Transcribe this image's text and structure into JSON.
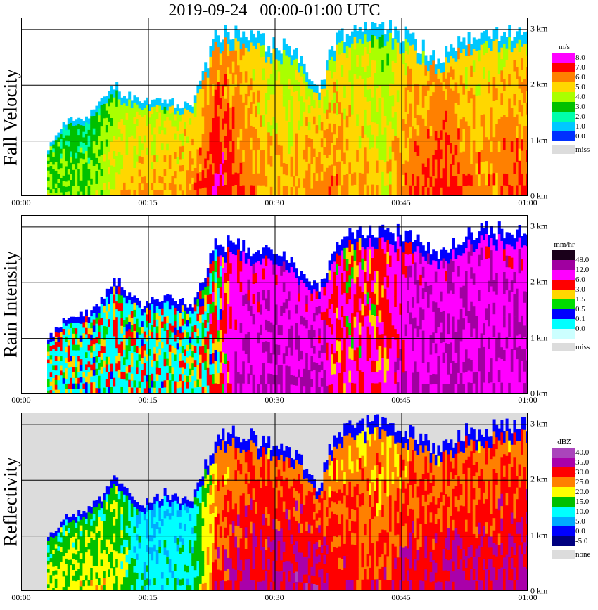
{
  "title": "2019-09-24   00:00-01:00 UTC",
  "x_ticks": [
    "00:00",
    "00:15",
    "00:30",
    "00:45",
    "01:00"
  ],
  "y_ticks": [
    "0 km",
    "1 km",
    "2 km",
    "3 km"
  ],
  "colors": {
    "missing": "#dcdcdc",
    "grid": "#000000"
  },
  "panels": [
    {
      "id": "fall-velocity",
      "ylabel": "Fall Velocity",
      "colorbar": {
        "unit": "m/s",
        "labels": [
          "8.0",
          "7.0",
          "6.0",
          "5.0",
          "4.0",
          "3.0",
          "2.0",
          "1.0",
          "0.0"
        ],
        "colors": [
          "#ff00ff",
          "#ff0000",
          "#ff8000",
          "#ffd700",
          "#aaff00",
          "#00c000",
          "#00ffaa",
          "#00c8ff",
          "#0030ff"
        ],
        "missing_label": "miss"
      }
    },
    {
      "id": "rain-intensity",
      "ylabel": "Rain Intensity",
      "colorbar": {
        "unit": "mm/hr",
        "labels": [
          "48.0",
          "12.0",
          "6.0",
          "3.0",
          "1.5",
          "0.5",
          "0.1",
          "0.0"
        ],
        "colors": [
          "#1a001a",
          "#a000a0",
          "#ff00ff",
          "#ff0000",
          "#ffd700",
          "#00dd00",
          "#0000ff",
          "#00ffff",
          "#ccffff"
        ],
        "missing_label": "miss"
      }
    },
    {
      "id": "reflectivity",
      "ylabel": "Reflectivity",
      "colorbar": {
        "unit": "dBZ",
        "labels": [
          "40.0",
          "35.0",
          "30.0",
          "25.0",
          "20.0",
          "15.0",
          "10.0",
          "5.0",
          "0.0",
          "-5.0"
        ],
        "colors": [
          "#aa44bb",
          "#aa00aa",
          "#ff0000",
          "#ff8000",
          "#ffff00",
          "#00c000",
          "#00ffff",
          "#00aaff",
          "#0000ff",
          "#000080"
        ],
        "missing_label": "none"
      }
    }
  ],
  "chart_data": [
    {
      "type": "heatmap",
      "ylabel": "Fall Velocity",
      "x_range": [
        "00:00",
        "01:00"
      ],
      "ylim_km": [
        0,
        3.2
      ],
      "unit": "m/s",
      "levels": [
        0,
        1,
        2,
        3,
        4,
        5,
        6,
        7,
        8
      ],
      "profiles": [
        {
          "t": "00:03",
          "top_km": 0.9,
          "v": 4.5
        },
        {
          "t": "00:05",
          "top_km": 1.4,
          "v": 4.0
        },
        {
          "t": "00:08",
          "top_km": 1.5,
          "v": 4.0
        },
        {
          "t": "00:11",
          "top_km": 2.0,
          "v": 5.5
        },
        {
          "t": "00:14",
          "top_km": 1.7,
          "v": 6.0
        },
        {
          "t": "00:17",
          "top_km": 1.8,
          "v": 6.0
        },
        {
          "t": "00:20",
          "top_km": 1.6,
          "v": 6.5
        },
        {
          "t": "00:23",
          "top_km": 3.0,
          "v": 8.0
        },
        {
          "t": "00:26",
          "top_km": 3.0,
          "v": 7.0
        },
        {
          "t": "00:29",
          "top_km": 2.8,
          "v": 6.0
        },
        {
          "t": "00:32",
          "top_km": 2.7,
          "v": 6.0
        },
        {
          "t": "00:35",
          "top_km": 1.9,
          "v": 6.5
        },
        {
          "t": "00:37",
          "top_km": 2.9,
          "v": 6.5
        },
        {
          "t": "00:40",
          "top_km": 3.1,
          "v": 6.0
        },
        {
          "t": "00:43",
          "top_km": 3.1,
          "v": 5.5
        },
        {
          "t": "00:46",
          "top_km": 2.9,
          "v": 7.0
        },
        {
          "t": "00:49",
          "top_km": 2.5,
          "v": 7.5
        },
        {
          "t": "00:52",
          "top_km": 2.9,
          "v": 7.0
        },
        {
          "t": "00:55",
          "top_km": 3.0,
          "v": 6.5
        },
        {
          "t": "00:58",
          "top_km": 3.0,
          "v": 7.0
        }
      ]
    },
    {
      "type": "heatmap",
      "ylabel": "Rain Intensity",
      "x_range": [
        "00:00",
        "01:00"
      ],
      "ylim_km": [
        0,
        3.2
      ],
      "unit": "mm/hr",
      "levels": [
        0.0,
        0.1,
        0.5,
        1.5,
        3.0,
        6.0,
        12.0,
        48.0
      ],
      "profiles": [
        {
          "t": "00:03",
          "top_km": 1.0,
          "v": 0.3
        },
        {
          "t": "00:05",
          "top_km": 1.4,
          "v": 0.6
        },
        {
          "t": "00:08",
          "top_km": 1.5,
          "v": 0.5
        },
        {
          "t": "00:11",
          "top_km": 2.1,
          "v": 0.6
        },
        {
          "t": "00:14",
          "top_km": 1.6,
          "v": 0.1
        },
        {
          "t": "00:17",
          "top_km": 1.8,
          "v": 0.1
        },
        {
          "t": "00:20",
          "top_km": 1.6,
          "v": 0.1
        },
        {
          "t": "00:23",
          "top_km": 2.8,
          "v": 3.0
        },
        {
          "t": "00:26",
          "top_km": 2.7,
          "v": 12.0
        },
        {
          "t": "00:29",
          "top_km": 2.6,
          "v": 12.0
        },
        {
          "t": "00:32",
          "top_km": 2.4,
          "v": 12.0
        },
        {
          "t": "00:35",
          "top_km": 1.9,
          "v": 12.0
        },
        {
          "t": "00:37",
          "top_km": 2.8,
          "v": 6.0
        },
        {
          "t": "00:40",
          "top_km": 3.0,
          "v": 6.0
        },
        {
          "t": "00:43",
          "top_km": 3.0,
          "v": 6.0
        },
        {
          "t": "00:46",
          "top_km": 2.9,
          "v": 12.0
        },
        {
          "t": "00:49",
          "top_km": 2.6,
          "v": 12.0
        },
        {
          "t": "00:52",
          "top_km": 2.9,
          "v": 12.0
        },
        {
          "t": "00:55",
          "top_km": 3.0,
          "v": 12.0
        },
        {
          "t": "00:58",
          "top_km": 3.0,
          "v": 12.0
        }
      ]
    },
    {
      "type": "heatmap",
      "ylabel": "Reflectivity",
      "x_range": [
        "00:00",
        "01:00"
      ],
      "ylim_km": [
        0,
        3.2
      ],
      "unit": "dBZ",
      "levels": [
        -5.0,
        0.0,
        5.0,
        10.0,
        15.0,
        20.0,
        25.0,
        30.0,
        35.0,
        40.0
      ],
      "profiles": [
        {
          "t": "00:03",
          "top_km": 1.0,
          "v": 20.0
        },
        {
          "t": "00:05",
          "top_km": 1.4,
          "v": 22.0
        },
        {
          "t": "00:08",
          "top_km": 1.5,
          "v": 22.0
        },
        {
          "t": "00:11",
          "top_km": 2.1,
          "v": 22.0
        },
        {
          "t": "00:14",
          "top_km": 1.6,
          "v": 13.0
        },
        {
          "t": "00:17",
          "top_km": 1.8,
          "v": 13.0
        },
        {
          "t": "00:20",
          "top_km": 1.6,
          "v": 14.0
        },
        {
          "t": "00:23",
          "top_km": 2.9,
          "v": 33.0
        },
        {
          "t": "00:26",
          "top_km": 2.9,
          "v": 36.0
        },
        {
          "t": "00:29",
          "top_km": 2.7,
          "v": 36.0
        },
        {
          "t": "00:32",
          "top_km": 2.6,
          "v": 37.0
        },
        {
          "t": "00:35",
          "top_km": 1.9,
          "v": 37.0
        },
        {
          "t": "00:37",
          "top_km": 2.9,
          "v": 33.0
        },
        {
          "t": "00:40",
          "top_km": 3.1,
          "v": 32.0
        },
        {
          "t": "00:43",
          "top_km": 3.1,
          "v": 32.0
        },
        {
          "t": "00:46",
          "top_km": 2.9,
          "v": 35.0
        },
        {
          "t": "00:49",
          "top_km": 2.6,
          "v": 36.0
        },
        {
          "t": "00:52",
          "top_km": 2.9,
          "v": 36.0
        },
        {
          "t": "00:55",
          "top_km": 3.0,
          "v": 36.0
        },
        {
          "t": "00:58",
          "top_km": 3.0,
          "v": 36.0
        }
      ]
    }
  ]
}
